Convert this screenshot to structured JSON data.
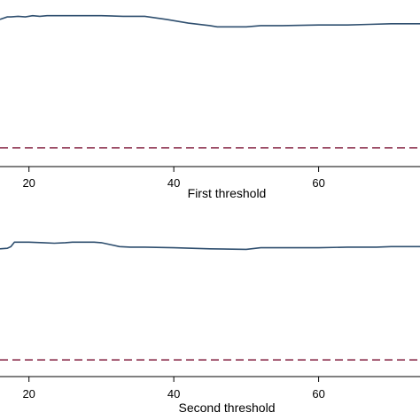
{
  "colors": {
    "series": "#2f4f6f",
    "reference": "#8b2e4c",
    "axis": "#000000",
    "background": "#ffffff"
  },
  "chart_data": [
    {
      "type": "line",
      "title": "",
      "xlabel": "First threshold",
      "ylabel": "",
      "xlim": [
        16,
        74
      ],
      "ylim": [
        -1.15,
        0.15
      ],
      "xticks": [
        20,
        40,
        60
      ],
      "grid": false,
      "legend": "none",
      "series": [
        {
          "x": [
            16,
            17,
            17.5,
            18.5,
            19.5,
            20.5,
            21.5,
            22.5,
            30,
            33,
            36,
            39,
            42,
            45,
            46,
            48,
            50,
            52,
            55,
            60,
            64,
            67,
            70,
            74
          ],
          "y": [
            0.03,
            0.05,
            0.05,
            0.055,
            0.05,
            0.06,
            0.055,
            0.06,
            0.06,
            0.055,
            0.055,
            0.03,
            0.0,
            -0.02,
            -0.03,
            -0.03,
            -0.03,
            -0.02,
            -0.02,
            -0.015,
            -0.015,
            -0.01,
            -0.005,
            -0.005
          ]
        }
      ],
      "reference_line": {
        "style": "dashed",
        "y": -1.0
      }
    },
    {
      "type": "line",
      "title": "",
      "xlabel": "Second threshold",
      "ylabel": "",
      "xlim": [
        16,
        74
      ],
      "ylim": [
        -1.15,
        0.15
      ],
      "xticks": [
        20,
        40,
        60
      ],
      "grid": false,
      "legend": "none",
      "series": [
        {
          "x": [
            16,
            17,
            17.5,
            18,
            20,
            22,
            23.5,
            25,
            26,
            29,
            30,
            32.5,
            34,
            36,
            40,
            45,
            50,
            52,
            56,
            60,
            64,
            68,
            70,
            74
          ],
          "y": [
            0.0,
            0.005,
            0.02,
            0.06,
            0.06,
            0.055,
            0.05,
            0.055,
            0.06,
            0.06,
            0.055,
            0.02,
            0.015,
            0.015,
            0.01,
            0.0,
            -0.005,
            0.01,
            0.01,
            0.01,
            0.015,
            0.015,
            0.02,
            0.02
          ]
        }
      ],
      "reference_line": {
        "style": "dashed",
        "y": -1.0
      }
    }
  ]
}
